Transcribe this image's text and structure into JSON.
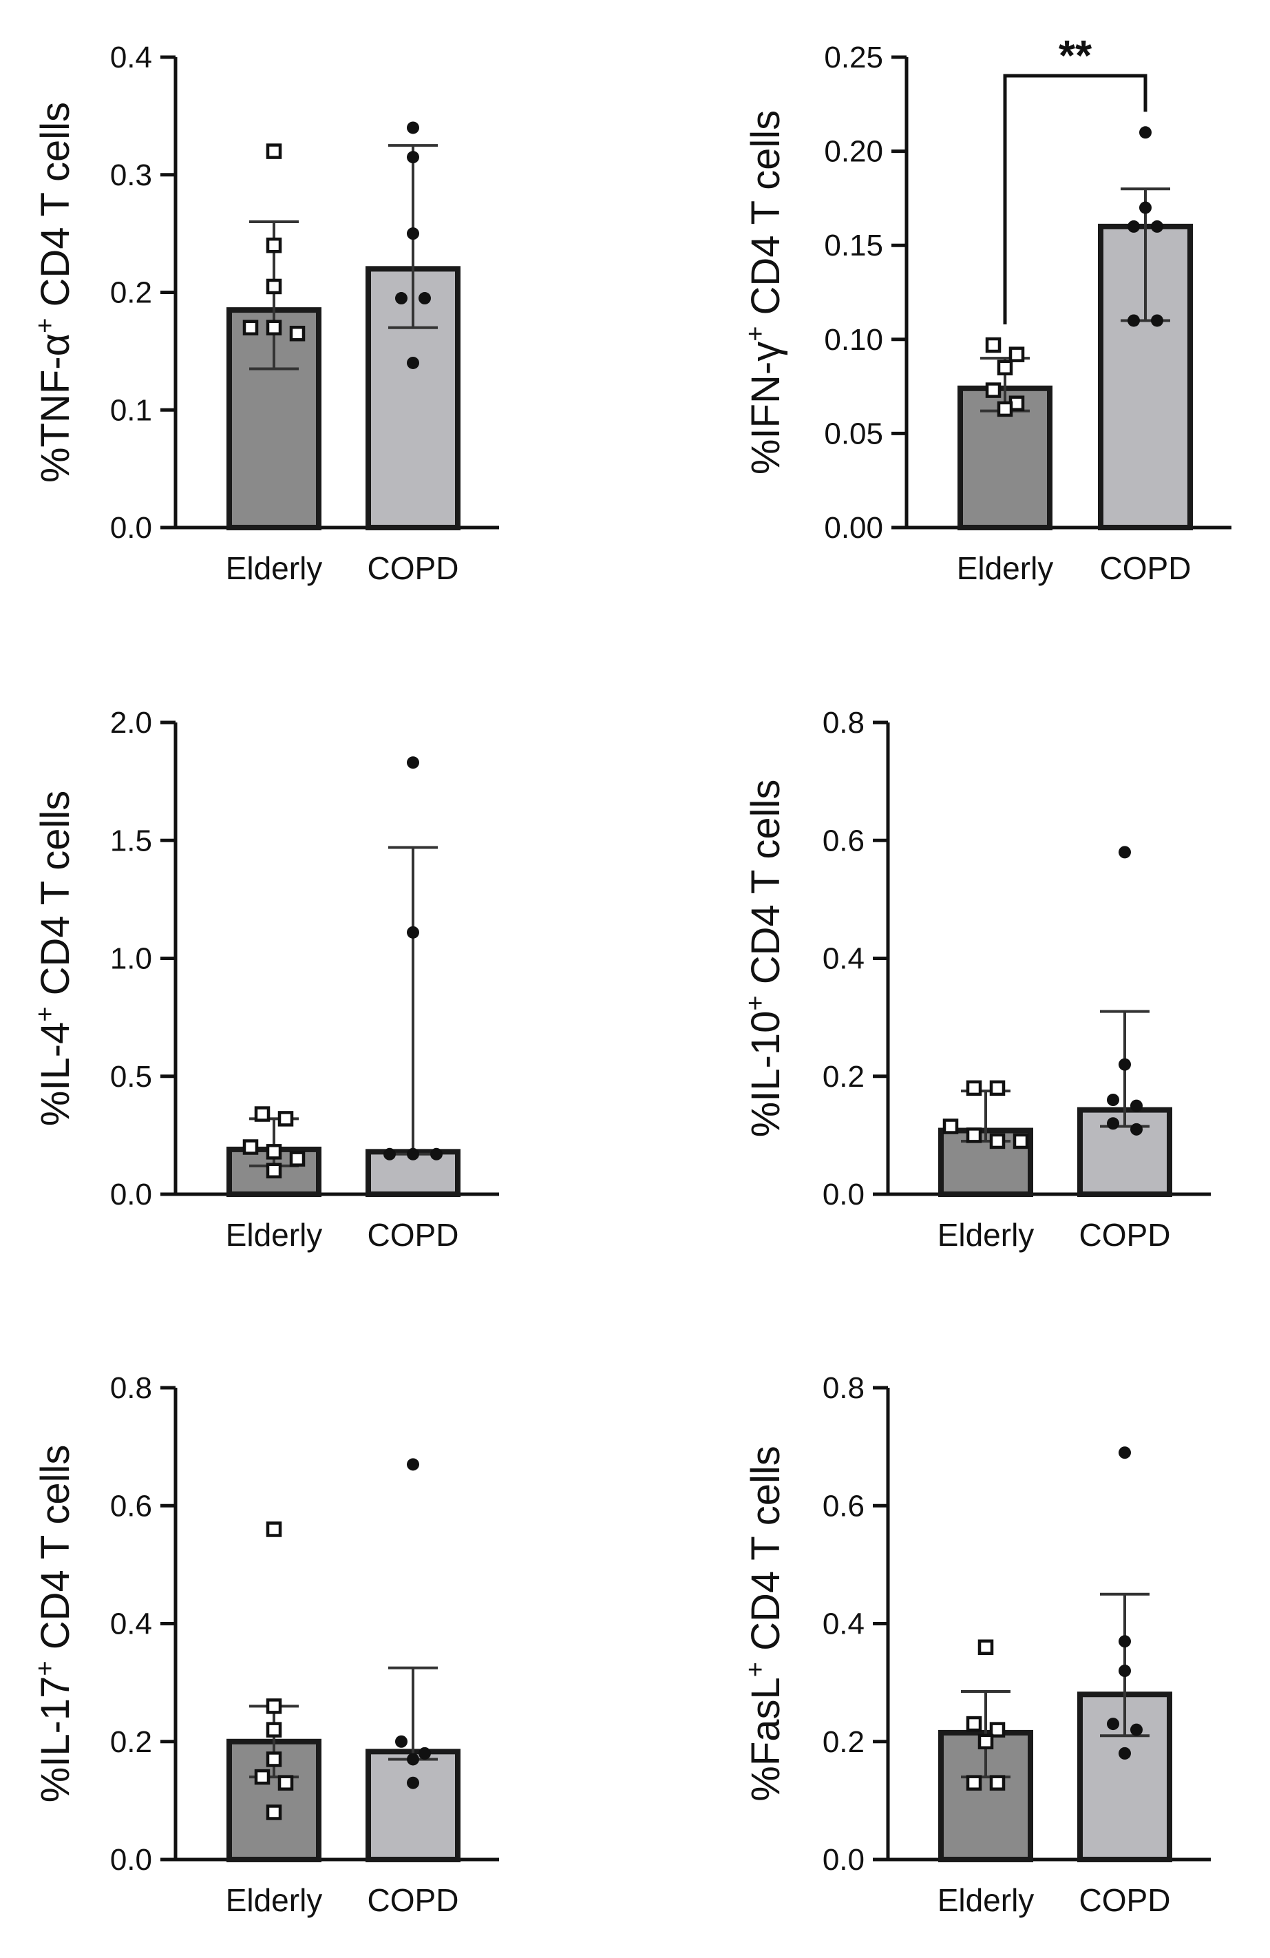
{
  "figure": {
    "categories": [
      "Elderly",
      "COPD"
    ],
    "colors": {
      "elderly_bar": "#8a8a8a",
      "copd_bar": "#b9b9bd",
      "bar_edge": "#1a1a1a",
      "errorbar": "#333333",
      "point": "#111111",
      "axis": "#111111"
    }
  },
  "chart_data": [
    {
      "type": "bar",
      "ylabel_pre": "%TNF-α",
      "ylabel_sup": "+",
      "ylabel_post": " CD4 T cells",
      "ylim": [
        0,
        0.4
      ],
      "yticks": [
        0.0,
        0.1,
        0.2,
        0.3,
        0.4
      ],
      "ytick_labels": [
        "0.0",
        "0.1",
        "0.2",
        "0.3",
        "0.4"
      ],
      "categories": [
        "Elderly",
        "COPD"
      ],
      "series": [
        {
          "name": "Elderly",
          "value": 0.185,
          "err_low": 0.135,
          "err_high": 0.26,
          "marker": "open-square",
          "points": [
            0.32,
            0.24,
            0.205,
            0.17,
            0.17,
            0.165
          ]
        },
        {
          "name": "COPD",
          "value": 0.22,
          "err_low": 0.17,
          "err_high": 0.325,
          "marker": "filled-circle",
          "points": [
            0.34,
            0.315,
            0.25,
            0.195,
            0.195,
            0.14
          ]
        }
      ]
    },
    {
      "type": "bar",
      "ylabel_pre": "%IFN-γ",
      "ylabel_sup": "+",
      "ylabel_post": " CD4 T cells",
      "ylim": [
        0,
        0.25
      ],
      "yticks": [
        0.0,
        0.05,
        0.1,
        0.15,
        0.2,
        0.25
      ],
      "ytick_labels": [
        "0.00",
        "0.05",
        "0.10",
        "0.15",
        "0.20",
        "0.25"
      ],
      "categories": [
        "Elderly",
        "COPD"
      ],
      "significance": {
        "label": "**",
        "from": 0,
        "to": 1
      },
      "series": [
        {
          "name": "Elderly",
          "value": 0.074,
          "err_low": 0.062,
          "err_high": 0.09,
          "marker": "open-square",
          "points": [
            0.097,
            0.092,
            0.085,
            0.073,
            0.066,
            0.063
          ]
        },
        {
          "name": "COPD",
          "value": 0.16,
          "err_low": 0.11,
          "err_high": 0.18,
          "marker": "filled-circle",
          "points": [
            0.21,
            0.17,
            0.16,
            0.16,
            0.11,
            0.11
          ]
        }
      ]
    },
    {
      "type": "bar",
      "ylabel_pre": "%IL-4",
      "ylabel_sup": "+",
      "ylabel_post": " CD4 T cells",
      "ylim": [
        0,
        2.0
      ],
      "yticks": [
        0.0,
        0.5,
        1.0,
        1.5,
        2.0
      ],
      "ytick_labels": [
        "0.0",
        "0.5",
        "1.0",
        "1.5",
        "2.0"
      ],
      "categories": [
        "Elderly",
        "COPD"
      ],
      "series": [
        {
          "name": "Elderly",
          "value": 0.19,
          "err_low": 0.12,
          "err_high": 0.32,
          "marker": "open-square",
          "points": [
            0.34,
            0.32,
            0.2,
            0.18,
            0.15,
            0.1
          ]
        },
        {
          "name": "COPD",
          "value": 0.18,
          "err_low": 0.17,
          "err_high": 1.47,
          "marker": "filled-circle",
          "points": [
            1.83,
            1.11,
            0.17,
            0.17,
            0.17
          ]
        }
      ]
    },
    {
      "type": "bar",
      "ylabel_pre": "%IL-10",
      "ylabel_sup": "+",
      "ylabel_post": " CD4 T cells",
      "ylim": [
        0,
        0.8
      ],
      "yticks": [
        0.0,
        0.2,
        0.4,
        0.6,
        0.8
      ],
      "ytick_labels": [
        "0.0",
        "0.2",
        "0.4",
        "0.6",
        "0.8"
      ],
      "categories": [
        "Elderly",
        "COPD"
      ],
      "series": [
        {
          "name": "Elderly",
          "value": 0.108,
          "err_low": 0.09,
          "err_high": 0.175,
          "marker": "open-square",
          "points": [
            0.18,
            0.18,
            0.115,
            0.1,
            0.09,
            0.09
          ]
        },
        {
          "name": "COPD",
          "value": 0.143,
          "err_low": 0.115,
          "err_high": 0.31,
          "marker": "filled-circle",
          "points": [
            0.58,
            0.22,
            0.16,
            0.15,
            0.12,
            0.11
          ]
        }
      ]
    },
    {
      "type": "bar",
      "ylabel_pre": "%IL-17",
      "ylabel_sup": "+",
      "ylabel_post": " CD4 T cells",
      "ylim": [
        0,
        0.8
      ],
      "yticks": [
        0.0,
        0.2,
        0.4,
        0.6,
        0.8
      ],
      "ytick_labels": [
        "0.0",
        "0.2",
        "0.4",
        "0.6",
        "0.8"
      ],
      "categories": [
        "Elderly",
        "COPD"
      ],
      "series": [
        {
          "name": "Elderly",
          "value": 0.2,
          "err_low": 0.14,
          "err_high": 0.26,
          "marker": "open-square",
          "points": [
            0.56,
            0.26,
            0.22,
            0.17,
            0.14,
            0.13,
            0.08
          ]
        },
        {
          "name": "COPD",
          "value": 0.183,
          "err_low": 0.17,
          "err_high": 0.325,
          "marker": "filled-circle",
          "points": [
            0.67,
            0.2,
            0.18,
            0.17,
            0.13
          ]
        }
      ]
    },
    {
      "type": "bar",
      "ylabel_pre": "%FasL",
      "ylabel_sup": "+",
      "ylabel_post": " CD4 T cells",
      "ylim": [
        0,
        0.8
      ],
      "yticks": [
        0.0,
        0.2,
        0.4,
        0.6,
        0.8
      ],
      "ytick_labels": [
        "0.0",
        "0.2",
        "0.4",
        "0.6",
        "0.8"
      ],
      "categories": [
        "Elderly",
        "COPD"
      ],
      "series": [
        {
          "name": "Elderly",
          "value": 0.215,
          "err_low": 0.14,
          "err_high": 0.285,
          "marker": "open-square",
          "points": [
            0.36,
            0.23,
            0.22,
            0.2,
            0.13,
            0.13
          ]
        },
        {
          "name": "COPD",
          "value": 0.28,
          "err_low": 0.21,
          "err_high": 0.45,
          "marker": "filled-circle",
          "points": [
            0.69,
            0.37,
            0.32,
            0.23,
            0.22,
            0.18
          ]
        }
      ]
    }
  ]
}
